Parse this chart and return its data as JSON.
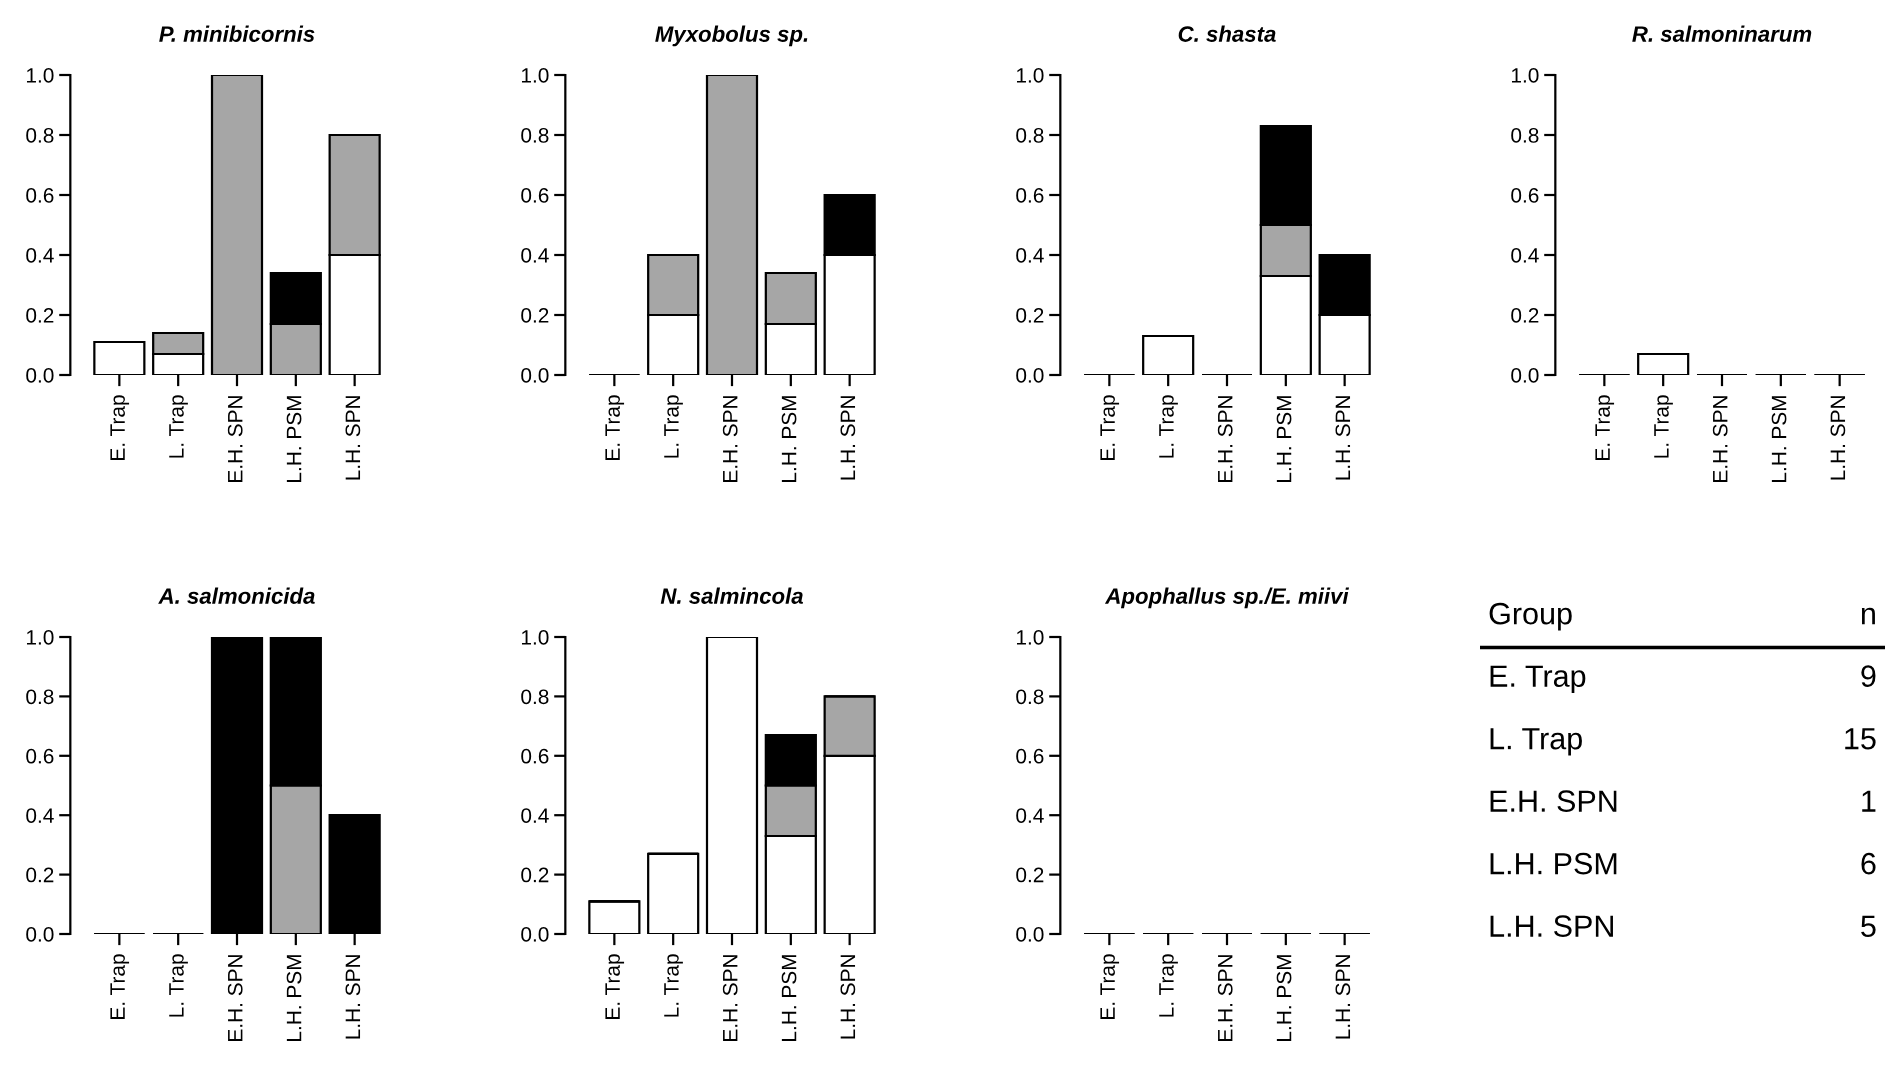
{
  "chart_data": [
    {
      "type": "bar",
      "stacked": true,
      "title": "P. minibicornis",
      "categories": [
        "E. Trap",
        "L. Trap",
        "E.H. SPN",
        "L.H. PSM",
        "L.H. SPN"
      ],
      "ylim": [
        0,
        1
      ],
      "yticks": [
        {
          "value": 0,
          "label": "0.0"
        },
        {
          "value": 0.2,
          "label": "0.2"
        },
        {
          "value": 0.4,
          "label": "0.4"
        },
        {
          "value": 0.6,
          "label": "0.6"
        },
        {
          "value": 0.8,
          "label": "0.8"
        },
        {
          "value": 1,
          "label": "1.0"
        }
      ],
      "grid": false,
      "legend": false,
      "series": [
        {
          "color": "#ffffff",
          "values": [
            0.11,
            0.07,
            0,
            0,
            0.4
          ]
        },
        {
          "color": "#a6a6a6",
          "values": [
            0,
            0.07,
            1,
            0.17,
            0.4
          ]
        },
        {
          "color": "#000000",
          "values": [
            0,
            0,
            0,
            0.17,
            0
          ]
        }
      ]
    },
    {
      "type": "bar",
      "stacked": true,
      "title": "Myxobolus sp.",
      "categories": [
        "E. Trap",
        "L. Trap",
        "E.H. SPN",
        "L.H. PSM",
        "L.H. SPN"
      ],
      "ylim": [
        0,
        1
      ],
      "yticks": [
        {
          "value": 0,
          "label": "0.0"
        },
        {
          "value": 0.2,
          "label": "0.2"
        },
        {
          "value": 0.4,
          "label": "0.4"
        },
        {
          "value": 0.6,
          "label": "0.6"
        },
        {
          "value": 0.8,
          "label": "0.8"
        },
        {
          "value": 1,
          "label": "1.0"
        }
      ],
      "grid": false,
      "legend": false,
      "series": [
        {
          "color": "#ffffff",
          "values": [
            0,
            0.2,
            0,
            0.17,
            0.4
          ]
        },
        {
          "color": "#a6a6a6",
          "values": [
            0,
            0.2,
            1,
            0.17,
            0
          ]
        },
        {
          "color": "#000000",
          "values": [
            0,
            0,
            0,
            0,
            0.2
          ]
        }
      ]
    },
    {
      "type": "bar",
      "stacked": true,
      "title": "C. shasta",
      "categories": [
        "E. Trap",
        "L. Trap",
        "E.H. SPN",
        "L.H. PSM",
        "L.H. SPN"
      ],
      "ylim": [
        0,
        1
      ],
      "yticks": [
        {
          "value": 0,
          "label": "0.0"
        },
        {
          "value": 0.2,
          "label": "0.2"
        },
        {
          "value": 0.4,
          "label": "0.4"
        },
        {
          "value": 0.6,
          "label": "0.6"
        },
        {
          "value": 0.8,
          "label": "0.8"
        },
        {
          "value": 1,
          "label": "1.0"
        }
      ],
      "grid": false,
      "legend": false,
      "series": [
        {
          "color": "#ffffff",
          "values": [
            0,
            0.13,
            0,
            0.33,
            0.2
          ]
        },
        {
          "color": "#a6a6a6",
          "values": [
            0,
            0,
            0,
            0.17,
            0
          ]
        },
        {
          "color": "#000000",
          "values": [
            0,
            0,
            0,
            0.33,
            0.2
          ]
        }
      ]
    },
    {
      "type": "bar",
      "stacked": true,
      "title": "R. salmoninarum",
      "categories": [
        "E. Trap",
        "L. Trap",
        "E.H. SPN",
        "L.H. PSM",
        "L.H. SPN"
      ],
      "ylim": [
        0,
        1
      ],
      "yticks": [
        {
          "value": 0,
          "label": "0.0"
        },
        {
          "value": 0.2,
          "label": "0.2"
        },
        {
          "value": 0.4,
          "label": "0.4"
        },
        {
          "value": 0.6,
          "label": "0.6"
        },
        {
          "value": 0.8,
          "label": "0.8"
        },
        {
          "value": 1,
          "label": "1.0"
        }
      ],
      "grid": false,
      "legend": false,
      "series": [
        {
          "color": "#ffffff",
          "values": [
            0,
            0.07,
            0,
            0,
            0
          ]
        },
        {
          "color": "#a6a6a6",
          "values": [
            0,
            0,
            0,
            0,
            0
          ]
        },
        {
          "color": "#000000",
          "values": [
            0,
            0,
            0,
            0,
            0
          ]
        }
      ]
    },
    {
      "type": "bar",
      "stacked": true,
      "title": "A. salmonicida",
      "categories": [
        "E. Trap",
        "L. Trap",
        "E.H. SPN",
        "L.H. PSM",
        "L.H. SPN"
      ],
      "ylim": [
        0,
        1
      ],
      "yticks": [
        {
          "value": 0,
          "label": "0.0"
        },
        {
          "value": 0.2,
          "label": "0.2"
        },
        {
          "value": 0.4,
          "label": "0.4"
        },
        {
          "value": 0.6,
          "label": "0.6"
        },
        {
          "value": 0.8,
          "label": "0.8"
        },
        {
          "value": 1,
          "label": "1.0"
        }
      ],
      "grid": false,
      "legend": false,
      "series": [
        {
          "color": "#ffffff",
          "values": [
            0,
            0,
            0,
            0,
            0
          ]
        },
        {
          "color": "#a6a6a6",
          "values": [
            0,
            0,
            0,
            0.5,
            0
          ]
        },
        {
          "color": "#000000",
          "values": [
            0,
            0,
            1,
            0.5,
            0.4
          ]
        }
      ]
    },
    {
      "type": "bar",
      "stacked": true,
      "title": "N. salmincola",
      "categories": [
        "E. Trap",
        "L. Trap",
        "E.H. SPN",
        "L.H. PSM",
        "L.H. SPN"
      ],
      "ylim": [
        0,
        1
      ],
      "yticks": [
        {
          "value": 0,
          "label": "0.0"
        },
        {
          "value": 0.2,
          "label": "0.2"
        },
        {
          "value": 0.4,
          "label": "0.4"
        },
        {
          "value": 0.6,
          "label": "0.6"
        },
        {
          "value": 0.8,
          "label": "0.8"
        },
        {
          "value": 1,
          "label": "1.0"
        }
      ],
      "grid": false,
      "legend": false,
      "series": [
        {
          "color": "#ffffff",
          "values": [
            0.11,
            0.27,
            1,
            0.33,
            0.6
          ]
        },
        {
          "color": "#a6a6a6",
          "values": [
            0,
            0,
            0,
            0.17,
            0.2
          ]
        },
        {
          "color": "#000000",
          "values": [
            0,
            0,
            0,
            0.17,
            0
          ]
        }
      ]
    },
    {
      "type": "bar",
      "stacked": true,
      "title": "Apophallus sp./E. miivi",
      "categories": [
        "E. Trap",
        "L. Trap",
        "E.H. SPN",
        "L.H. PSM",
        "L.H. SPN"
      ],
      "ylim": [
        0,
        1
      ],
      "yticks": [
        {
          "value": 0,
          "label": "0.0"
        },
        {
          "value": 0.2,
          "label": "0.2"
        },
        {
          "value": 0.4,
          "label": "0.4"
        },
        {
          "value": 0.6,
          "label": "0.6"
        },
        {
          "value": 0.8,
          "label": "0.8"
        },
        {
          "value": 1,
          "label": "1.0"
        }
      ],
      "grid": false,
      "legend": false,
      "series": [
        {
          "color": "#ffffff",
          "values": [
            0,
            0,
            0,
            0,
            0
          ]
        },
        {
          "color": "#a6a6a6",
          "values": [
            0,
            0,
            0,
            0,
            0
          ]
        },
        {
          "color": "#000000",
          "values": [
            0,
            0,
            0,
            0,
            0
          ]
        }
      ]
    },
    {
      "type": "other",
      "data_labels": true,
      "annotations": [
        "Group",
        "n"
      ],
      "categories": [
        "E. Trap",
        "L. Trap",
        "E.H. SPN",
        "L.H. PSM",
        "L.H. SPN"
      ],
      "values": [
        9,
        15,
        1,
        6,
        5
      ]
    }
  ]
}
